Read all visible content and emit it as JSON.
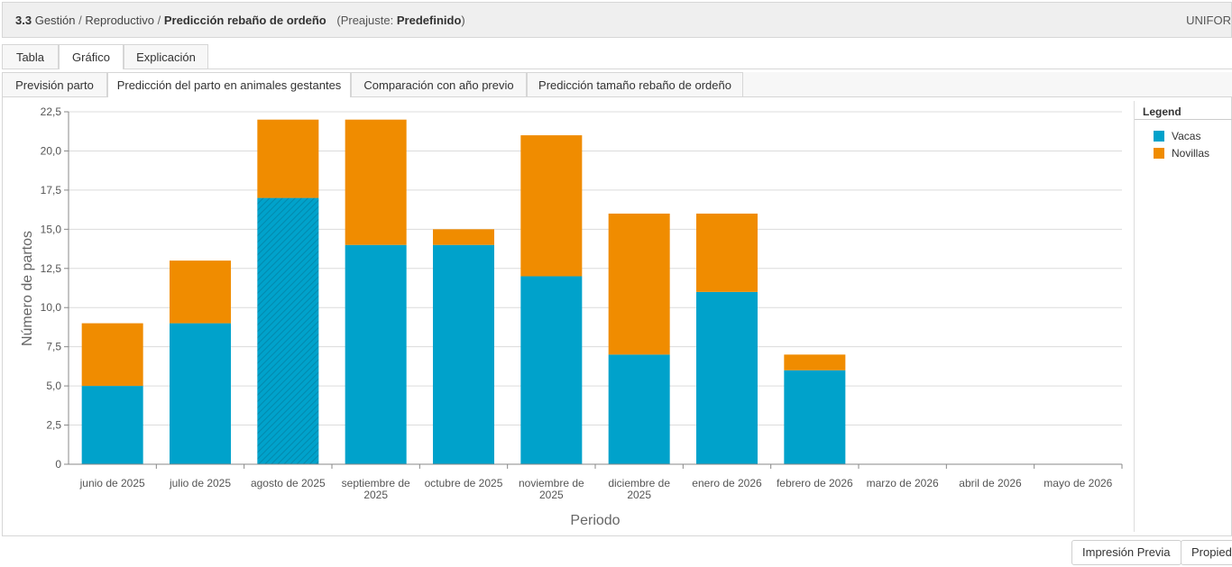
{
  "header": {
    "number": "3.3",
    "crumb1": "Gestión",
    "crumb2": "Reproductivo",
    "title": "Predicción rebaño de ordeño",
    "preset_label": "(Preajuste:",
    "preset_value": "Predefinido",
    "preset_close": ")",
    "separator": "/",
    "right_text": "UNIFOR"
  },
  "tabs_primary": [
    {
      "label": "Tabla",
      "active": false
    },
    {
      "label": "Gráfico",
      "active": true
    },
    {
      "label": "Explicación",
      "active": false
    }
  ],
  "tabs_secondary": [
    {
      "label": "Previsión parto",
      "active": false
    },
    {
      "label": "Predicción del parto en animales gestantes",
      "active": true
    },
    {
      "label": "Comparación con año previo",
      "active": false
    },
    {
      "label": "Predicción tamaño rebaño de ordeño",
      "active": false
    }
  ],
  "legend": {
    "title": "Legend",
    "items": [
      {
        "label": "Vacas",
        "color": "#00a2cb"
      },
      {
        "label": "Novillas",
        "color": "#f08c00"
      }
    ]
  },
  "chart_data": {
    "type": "bar",
    "stacked": true,
    "categories": [
      [
        "junio de 2025"
      ],
      [
        "julio de 2025"
      ],
      [
        "agosto de 2025"
      ],
      [
        "septiembre de",
        "2025"
      ],
      [
        "octubre de 2025"
      ],
      [
        "noviembre de",
        "2025"
      ],
      [
        "diciembre de",
        "2025"
      ],
      [
        "enero de 2026"
      ],
      [
        "febrero de 2026"
      ],
      [
        "marzo de 2026"
      ],
      [
        "abril de 2026"
      ],
      [
        "mayo de 2026"
      ]
    ],
    "series": [
      {
        "name": "Vacas",
        "color": "#00a2cb",
        "values": [
          5,
          9,
          17,
          14,
          14,
          12,
          7,
          11,
          6,
          0,
          0,
          0
        ]
      },
      {
        "name": "Novillas",
        "color": "#f08c00",
        "values": [
          4,
          4,
          5,
          8,
          1,
          9,
          9,
          5,
          1,
          0,
          0,
          0
        ]
      }
    ],
    "highlighted_category_index": 2,
    "xlabel": "Periodo",
    "ylabel": "Número de partos",
    "ylim": [
      0,
      22.5
    ],
    "yticks": [
      "0",
      "2,5",
      "5,0",
      "7,5",
      "10,0",
      "12,5",
      "15,0",
      "17,5",
      "20,0",
      "22,5"
    ],
    "grid": true,
    "legend_position": "right"
  },
  "buttons": {
    "print_preview": "Impresión Previa",
    "properties": "Propied"
  }
}
